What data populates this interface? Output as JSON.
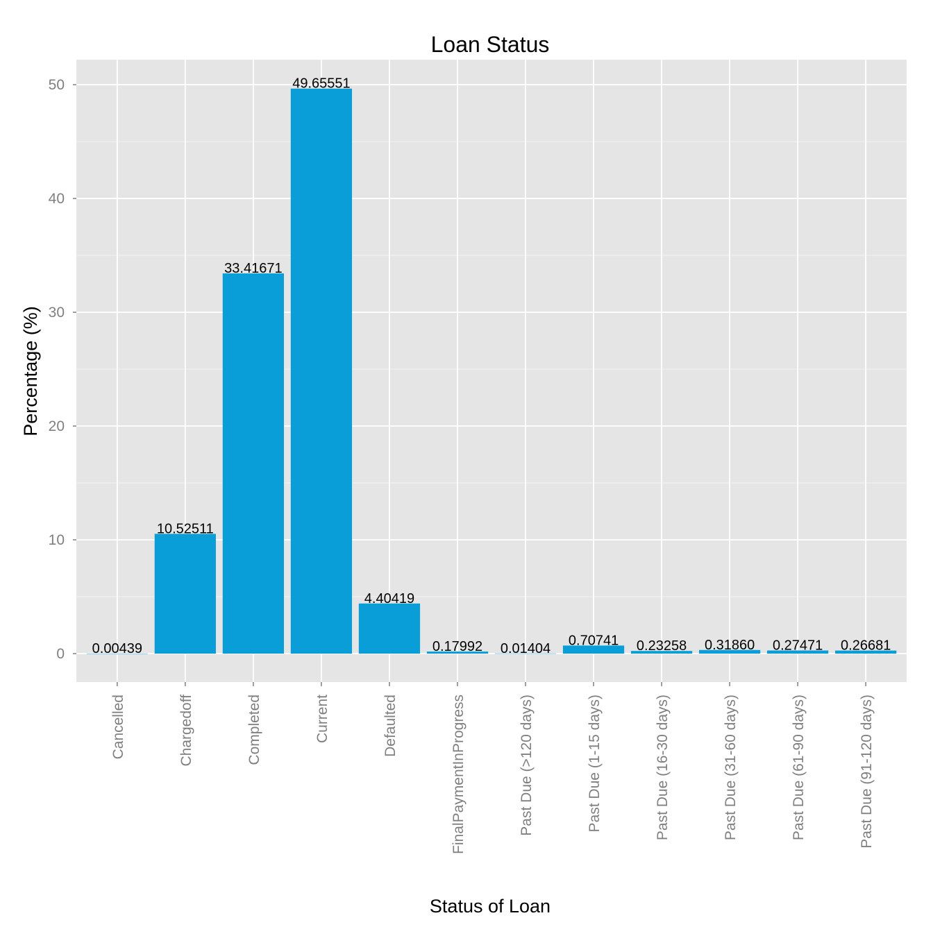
{
  "chart_data": {
    "type": "bar",
    "title": "Loan Status",
    "xlabel": "Status of Loan",
    "ylabel": "Percentage (%)",
    "categories": [
      "Cancelled",
      "Chargedoff",
      "Completed",
      "Current",
      "Defaulted",
      "FinalPaymentInProgress",
      "Past Due (>120 days)",
      "Past Due (1-15 days)",
      "Past Due (16-30 days)",
      "Past Due (31-60 days)",
      "Past Due (61-90 days)",
      "Past Due (91-120 days)"
    ],
    "values": [
      0.00439,
      10.52511,
      33.41671,
      49.65551,
      4.40419,
      0.17992,
      0.01404,
      0.70741,
      0.23258,
      0.3186,
      0.27471,
      0.26681
    ],
    "value_labels": [
      "0.00439",
      "10.52511",
      "33.41671",
      "49.65551",
      "4.40419",
      "0.17992",
      "0.01404",
      "0.70741",
      "0.23258",
      "0.31860",
      "0.27471",
      "0.26681"
    ],
    "yticks": [
      0,
      10,
      20,
      30,
      40,
      50
    ],
    "ylim": [
      -2.5,
      52.2
    ],
    "grid": true,
    "colors": {
      "bar": "#0a9ed8",
      "panel": "#e5e5e5",
      "grid_major": "#ffffff",
      "grid_minor": "#f2f2f2",
      "tick_text": "#7f7f7f"
    }
  }
}
